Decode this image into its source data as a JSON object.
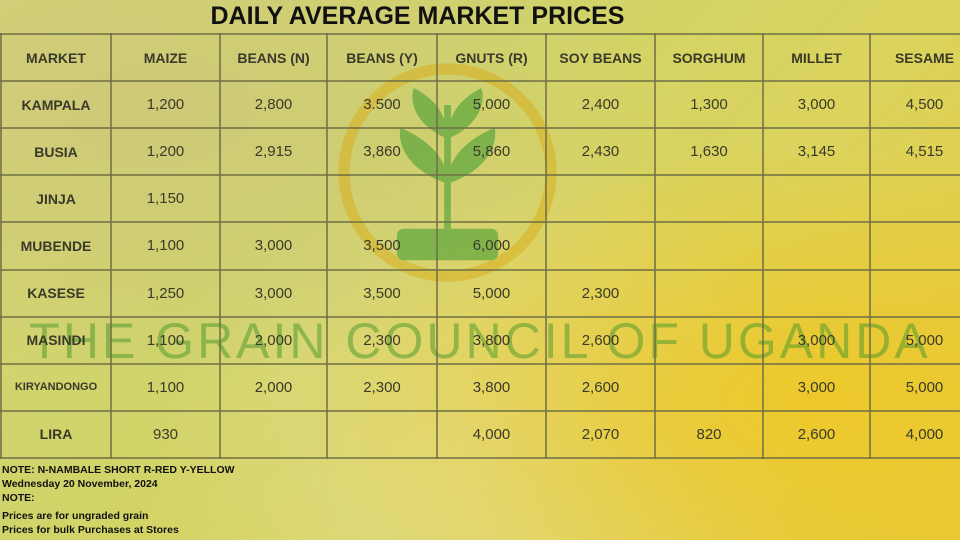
{
  "title": "DAILY AVERAGE MARKET PRICES",
  "watermark": "THE GRAIN COUNCIL OF UGANDA",
  "table": {
    "header": [
      "MARKET",
      "MAIZE",
      "BEANS (N)",
      "BEANS (Y)",
      "GNUTS (R)",
      "SOY BEANS",
      "SORGHUM",
      "MILLET",
      "SESAME"
    ],
    "rows": [
      [
        "KAMPALA",
        "1,200",
        "2,800",
        "3.500",
        "5,000",
        "2,400",
        "1,300",
        "3,000",
        "4,500"
      ],
      [
        "BUSIA",
        "1,200",
        "2,915",
        "3,860",
        "5,860",
        "2,430",
        "1,630",
        "3,145",
        "4,515"
      ],
      [
        "JINJA",
        "1,150",
        null,
        null,
        null,
        null,
        null,
        null,
        null
      ],
      [
        "MUBENDE",
        "1,100",
        "3,000",
        "3,500",
        "6,000",
        null,
        null,
        null,
        null
      ],
      [
        "KASESE",
        "1,250",
        "3,000",
        "3,500",
        "5,000",
        "2,300",
        null,
        null,
        null
      ],
      [
        "MASINDI",
        "1,100",
        "2,000",
        "2,300",
        "3,800",
        "2,600",
        null,
        "3,000",
        "5,000"
      ],
      [
        "KIRYANDONGO",
        "1,100",
        "2,000",
        "2,300",
        "3,800",
        "2,600",
        null,
        "3,000",
        "5,000"
      ],
      [
        "LIRA",
        "930",
        null,
        null,
        "4,000",
        "2,070",
        "820",
        "2,600",
        "4,000"
      ]
    ]
  },
  "notes": [
    "NOTE: N-NAMBALE SHORT R-RED Y-YELLOW",
    "Wednesday 20 November, 2024",
    "NOTE:",
    "Prices are for ungraded grain",
    "Prices for bulk Purchases at Stores"
  ]
}
